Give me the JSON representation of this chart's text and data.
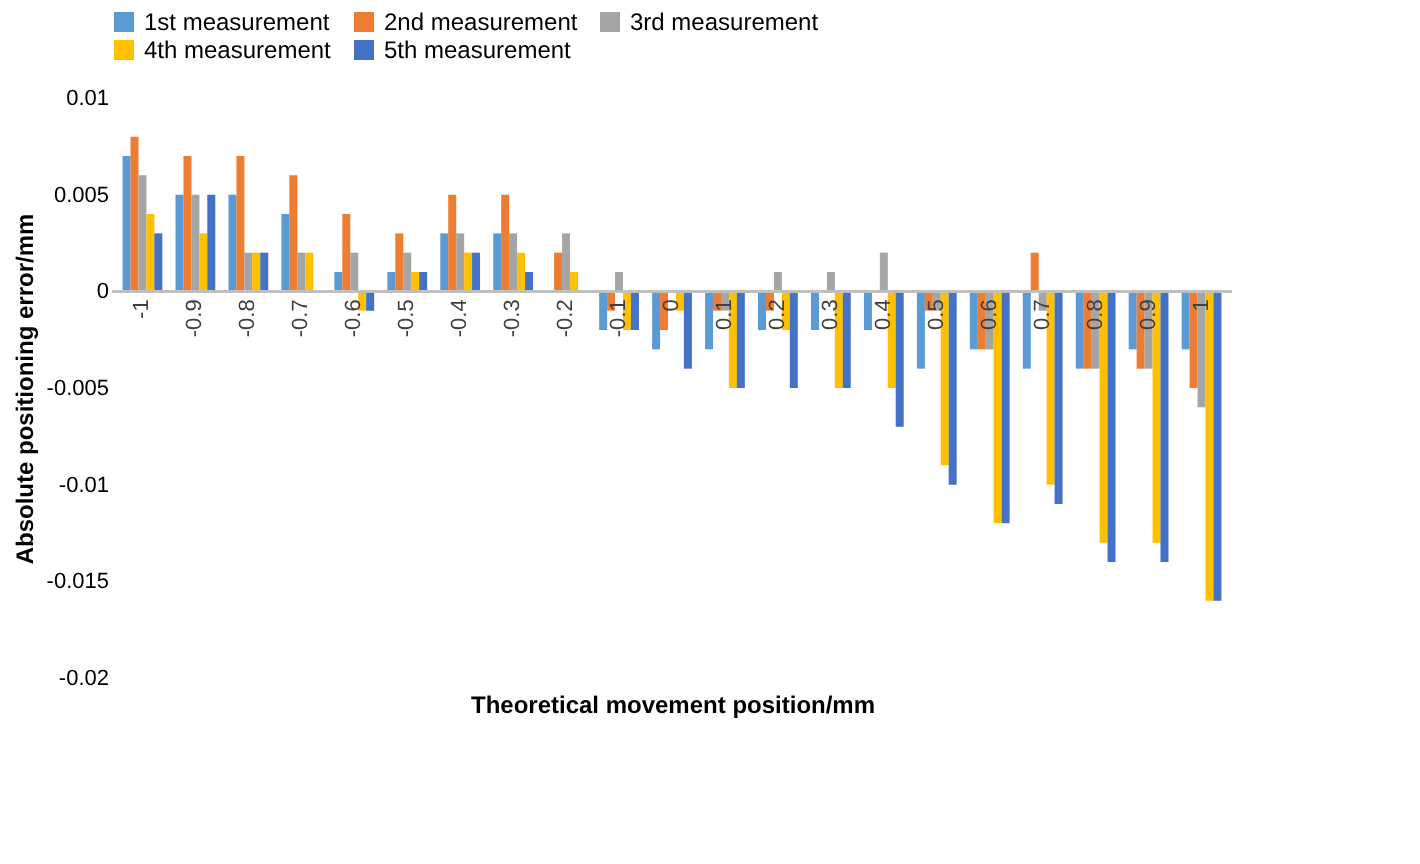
{
  "chart_data": {
    "type": "bar",
    "xlabel": "Theoretical movement position/mm",
    "ylabel": "Absolute positioning error/mm",
    "categories": [
      "-1",
      "-0.9",
      "-0.8",
      "-0.7",
      "-0.6",
      "-0.5",
      "-0.4",
      "-0.3",
      "-0.2",
      "-0.1",
      "0",
      "0.1",
      "0.2",
      "0.3",
      "0.4",
      "0.5",
      "0.6",
      "0.7",
      "0.8",
      "0.9",
      "1"
    ],
    "series": [
      {
        "name": "1st measurement",
        "color": "#5b9bd5",
        "values": [
          0.007,
          0.005,
          0.005,
          0.004,
          0.001,
          0.001,
          0.003,
          0.003,
          0,
          -0.002,
          -0.003,
          -0.003,
          -0.002,
          -0.002,
          -0.002,
          -0.004,
          -0.003,
          -0.004,
          -0.004,
          -0.003,
          -0.003
        ]
      },
      {
        "name": "2nd measurement",
        "color": "#ed7d31",
        "values": [
          0.008,
          0.007,
          0.007,
          0.006,
          0.004,
          0.003,
          0.005,
          0.005,
          0.002,
          -0.001,
          -0.002,
          -0.001,
          -0.001,
          0,
          0,
          -0.001,
          -0.003,
          0.002,
          -0.004,
          -0.004,
          -0.005
        ]
      },
      {
        "name": "3rd measurement",
        "color": "#a5a5a5",
        "values": [
          0.006,
          0.005,
          0.002,
          0.002,
          0.002,
          0.002,
          0.003,
          0.003,
          0.003,
          0.001,
          0,
          -0.001,
          0.001,
          0.001,
          0.002,
          -0.001,
          -0.003,
          -0.001,
          -0.004,
          -0.004,
          -0.006
        ]
      },
      {
        "name": "4th measurement",
        "color": "#ffc000",
        "values": [
          0.004,
          0.003,
          0.002,
          0.002,
          -0.001,
          0.001,
          0.002,
          0.002,
          0.001,
          -0.002,
          -0.001,
          -0.005,
          -0.002,
          -0.005,
          -0.005,
          -0.009,
          -0.012,
          -0.01,
          -0.013,
          -0.013,
          -0.016
        ]
      },
      {
        "name": "5th measurement",
        "color": "#4472c4",
        "values": [
          0.003,
          0.005,
          0.002,
          0,
          -0.001,
          0.001,
          0.002,
          0.001,
          0,
          -0.002,
          -0.004,
          -0.005,
          -0.005,
          -0.005,
          -0.007,
          -0.01,
          -0.012,
          -0.011,
          -0.014,
          -0.014,
          -0.016
        ]
      }
    ],
    "ylim": [
      -0.02,
      0.01
    ],
    "yticks": [
      -0.02,
      -0.015,
      -0.01,
      -0.005,
      0,
      0.005,
      0.01
    ],
    "grid": false,
    "legend": "top"
  }
}
